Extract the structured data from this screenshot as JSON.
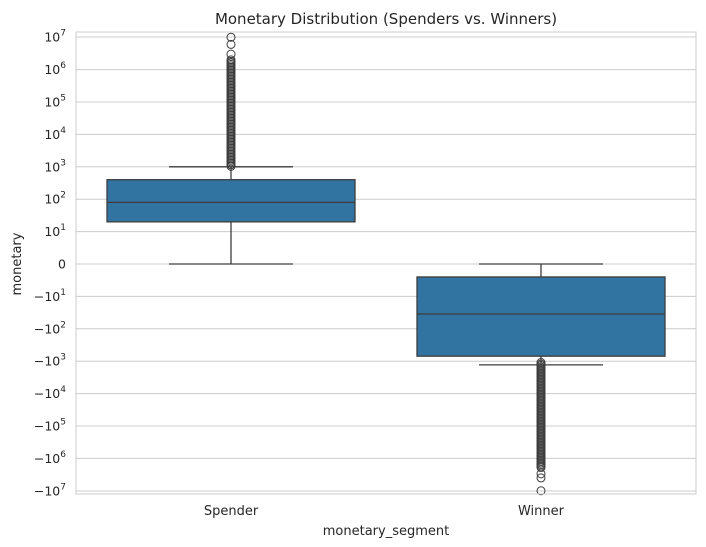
{
  "chart_data": {
    "type": "box",
    "title": "Monetary Distribution (Spenders vs. Winners)",
    "xlabel": "monetary_segment",
    "ylabel": "monetary",
    "yscale": "symlog",
    "ylim": [
      -10000000,
      10000000
    ],
    "grid": "horizontal",
    "categories": [
      "Spender",
      "Winner"
    ],
    "yticks": [
      {
        "base": "10",
        "exp": "7",
        "value": 10000000
      },
      {
        "base": "10",
        "exp": "6",
        "value": 1000000
      },
      {
        "base": "10",
        "exp": "5",
        "value": 100000
      },
      {
        "base": "10",
        "exp": "4",
        "value": 10000
      },
      {
        "base": "10",
        "exp": "3",
        "value": 1000
      },
      {
        "base": "10",
        "exp": "2",
        "value": 100
      },
      {
        "base": "10",
        "exp": "1",
        "value": 10
      },
      {
        "base": "0",
        "exp": "",
        "value": 0
      },
      {
        "base": "−10",
        "exp": "1",
        "value": -10
      },
      {
        "base": "−10",
        "exp": "2",
        "value": -100
      },
      {
        "base": "−10",
        "exp": "3",
        "value": -1000
      },
      {
        "base": "−10",
        "exp": "4",
        "value": -10000
      },
      {
        "base": "−10",
        "exp": "5",
        "value": -100000
      },
      {
        "base": "−10",
        "exp": "6",
        "value": -1000000
      },
      {
        "base": "−10",
        "exp": "7",
        "value": -10000000
      }
    ],
    "boxes": [
      {
        "category": "Spender",
        "whisker_low": 0,
        "q1": 20,
        "median": 80,
        "q3": 400,
        "whisker_high": 1000,
        "outlier_range": [
          1000,
          2000000
        ],
        "outliers": [
          3000000,
          6000000,
          10000000
        ]
      },
      {
        "category": "Winner",
        "whisker_low": -1300,
        "q1": -700,
        "median": -35,
        "q3": -4,
        "whisker_high": 0,
        "outlier_range": [
          -2000000,
          -1100
        ],
        "outliers": [
          -3000000,
          -4000000,
          -10000000
        ]
      }
    ],
    "colors": {
      "box_fill": "#3274a1",
      "line": "#3d3d3d",
      "grid": "#cccccc",
      "spine": "#cccccc"
    }
  }
}
